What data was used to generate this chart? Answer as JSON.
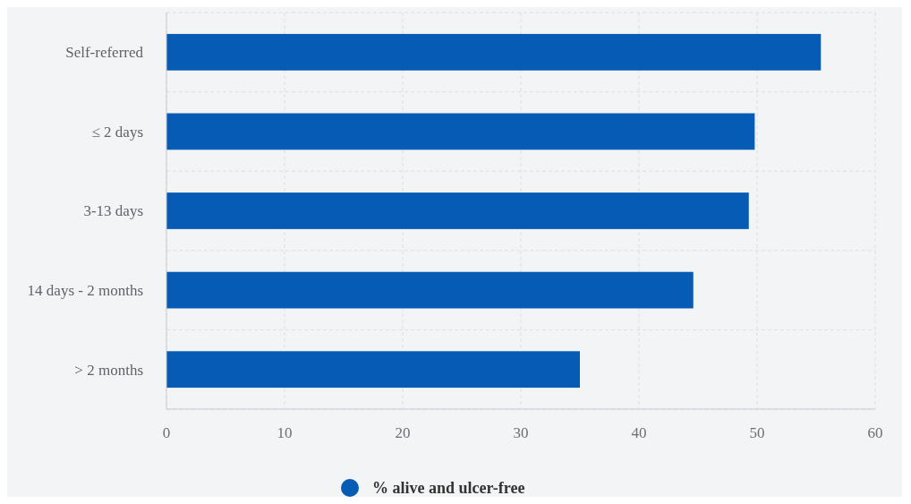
{
  "chart_data": {
    "type": "bar",
    "orientation": "horizontal",
    "categories": [
      "Self-referred",
      "≤ 2 days",
      "3-13 days",
      "14 days - 2 months",
      "> 2 months"
    ],
    "series": [
      {
        "name": "% alive and ulcer-free",
        "color": "#065bb4",
        "values": [
          55.4,
          49.8,
          49.3,
          44.6,
          35.0
        ]
      }
    ],
    "xlim": [
      0,
      60
    ],
    "xticks": [
      0,
      10,
      20,
      30,
      40,
      50,
      60
    ],
    "grid": true,
    "legend": "bottom"
  }
}
